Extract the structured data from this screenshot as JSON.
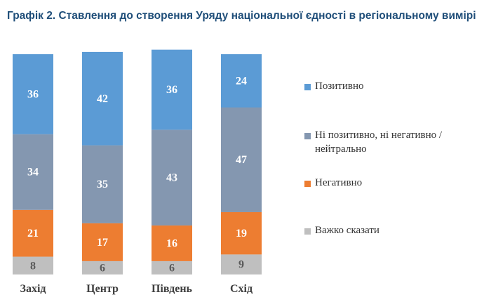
{
  "title": "Графік 2. Ставлення до створення Уряду національної єдності в регіональному вимірі",
  "colors": {
    "positive": "#5b9bd5",
    "neutral": "#8497b0",
    "negative": "#ed7d31",
    "hard_to_say": "#bfbfbf"
  },
  "legend": [
    {
      "label": "Позитивно",
      "color": "#5b9bd5",
      "icon": "square-swatch"
    },
    {
      "label": "Ні позитивно, ні негативно / нейтрально",
      "color": "#8497b0",
      "icon": "square-swatch"
    },
    {
      "label": "Негативно",
      "color": "#ed7d31",
      "icon": "square-swatch"
    },
    {
      "label": "Важко сказати",
      "color": "#bfbfbf",
      "icon": "square-swatch"
    }
  ],
  "chart_data": {
    "type": "bar",
    "stacked": true,
    "title": "Графік 2. Ставлення до створення Уряду національної єдності в регіональному вимірі",
    "categories": [
      "Захід",
      "Центр",
      "Південь",
      "Схід"
    ],
    "series": [
      {
        "name": "Важко сказати",
        "color": "#bfbfbf",
        "values": [
          8,
          6,
          6,
          9
        ]
      },
      {
        "name": "Негативно",
        "color": "#ed7d31",
        "values": [
          21,
          17,
          16,
          19
        ]
      },
      {
        "name": "Ні позитивно, ні негативно / нейтрально",
        "color": "#8497b0",
        "values": [
          34,
          35,
          43,
          47
        ]
      },
      {
        "name": "Позитивно",
        "color": "#5b9bd5",
        "values": [
          36,
          42,
          36,
          24
        ]
      }
    ],
    "ylim": [
      0,
      100
    ],
    "grid": false,
    "legend_position": "right"
  }
}
